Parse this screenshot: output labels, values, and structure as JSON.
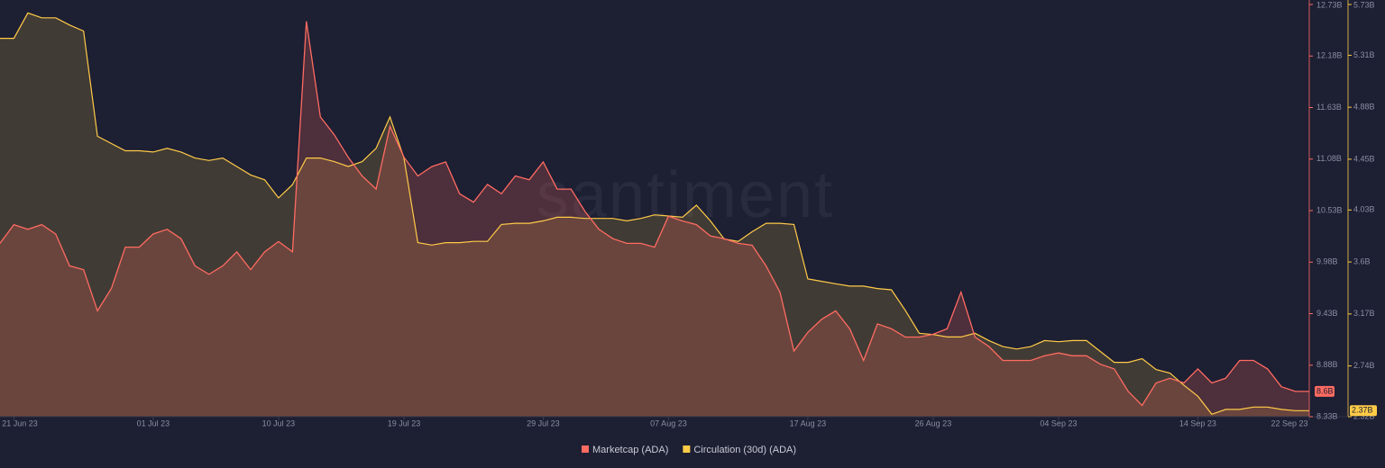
{
  "chart_data": {
    "type": "area",
    "watermark": "santiment",
    "x": [
      "2023-06-20",
      "2023-06-21",
      "2023-06-22",
      "2023-06-23",
      "2023-06-24",
      "2023-06-25",
      "2023-06-26",
      "2023-06-27",
      "2023-06-28",
      "2023-06-29",
      "2023-06-30",
      "2023-07-01",
      "2023-07-02",
      "2023-07-03",
      "2023-07-04",
      "2023-07-05",
      "2023-07-06",
      "2023-07-07",
      "2023-07-08",
      "2023-07-09",
      "2023-07-10",
      "2023-07-11",
      "2023-07-12",
      "2023-07-13",
      "2023-07-14",
      "2023-07-15",
      "2023-07-16",
      "2023-07-17",
      "2023-07-18",
      "2023-07-19",
      "2023-07-20",
      "2023-07-21",
      "2023-07-22",
      "2023-07-23",
      "2023-07-24",
      "2023-07-25",
      "2023-07-26",
      "2023-07-27",
      "2023-07-28",
      "2023-07-29",
      "2023-07-30",
      "2023-07-31",
      "2023-08-01",
      "2023-08-02",
      "2023-08-03",
      "2023-08-04",
      "2023-08-05",
      "2023-08-06",
      "2023-08-07",
      "2023-08-08",
      "2023-08-09",
      "2023-08-10",
      "2023-08-11",
      "2023-08-12",
      "2023-08-13",
      "2023-08-14",
      "2023-08-15",
      "2023-08-16",
      "2023-08-17",
      "2023-08-18",
      "2023-08-19",
      "2023-08-20",
      "2023-08-21",
      "2023-08-22",
      "2023-08-23",
      "2023-08-24",
      "2023-08-25",
      "2023-08-26",
      "2023-08-27",
      "2023-08-28",
      "2023-08-29",
      "2023-08-30",
      "2023-08-31",
      "2023-09-01",
      "2023-09-02",
      "2023-09-03",
      "2023-09-04",
      "2023-09-05",
      "2023-09-06",
      "2023-09-07",
      "2023-09-08",
      "2023-09-09",
      "2023-09-10",
      "2023-09-11",
      "2023-09-12",
      "2023-09-13",
      "2023-09-14",
      "2023-09-15",
      "2023-09-16",
      "2023-09-17",
      "2023-09-18",
      "2023-09-19",
      "2023-09-20",
      "2023-09-21",
      "2023-09-22"
    ],
    "xlim": [
      "2023-06-20",
      "2023-09-22"
    ],
    "xticks": [
      {
        "value": "2023-06-21",
        "label": "21 Jun 23"
      },
      {
        "value": "2023-07-01",
        "label": "01 Jul 23"
      },
      {
        "value": "2023-07-10",
        "label": "10 Jul 23"
      },
      {
        "value": "2023-07-19",
        "label": "19 Jul 23"
      },
      {
        "value": "2023-07-29",
        "label": "29 Jul 23"
      },
      {
        "value": "2023-08-07",
        "label": "07 Aug 23"
      },
      {
        "value": "2023-08-17",
        "label": "17 Aug 23"
      },
      {
        "value": "2023-08-26",
        "label": "26 Aug 23"
      },
      {
        "value": "2023-09-04",
        "label": "04 Sep 23"
      },
      {
        "value": "2023-09-14",
        "label": "14 Sep 23"
      },
      {
        "value": "2023-09-22",
        "label": "22 Sep 23"
      }
    ],
    "ylim": [
      8.33,
      12.73
    ],
    "yticks": [
      {
        "value": 12.73,
        "label": "12.73B"
      },
      {
        "value": 12.18,
        "label": "12.18B"
      },
      {
        "value": 11.63,
        "label": "11.63B"
      },
      {
        "value": 11.08,
        "label": "11.08B"
      },
      {
        "value": 10.53,
        "label": "10.53B"
      },
      {
        "value": 9.98,
        "label": "9.98B"
      },
      {
        "value": 9.43,
        "label": "9.43B"
      },
      {
        "value": 8.88,
        "label": "8.88B"
      },
      {
        "value": 8.33,
        "label": "8.33B"
      }
    ],
    "y2lim": [
      2.32,
      5.73
    ],
    "y2ticks": [
      {
        "value": 5.73,
        "label": "5.73B"
      },
      {
        "value": 5.31,
        "label": "5.31B"
      },
      {
        "value": 4.88,
        "label": "4.88B"
      },
      {
        "value": 4.45,
        "label": "4.45B"
      },
      {
        "value": 4.03,
        "label": "4.03B"
      },
      {
        "value": 3.6,
        "label": "3.6B"
      },
      {
        "value": 3.17,
        "label": "3.17B"
      },
      {
        "value": 2.74,
        "label": "2.74B"
      },
      {
        "value": 2.32,
        "label": "2.32B"
      }
    ],
    "series": [
      {
        "name": "Circulation (30d) (ADA)",
        "color": "#ffcb47",
        "axis": "y2",
        "last_value_label": "2.37B",
        "values": [
          5.45,
          5.45,
          5.66,
          5.62,
          5.62,
          5.56,
          5.51,
          4.64,
          4.58,
          4.52,
          4.52,
          4.51,
          4.54,
          4.51,
          4.46,
          4.44,
          4.46,
          4.39,
          4.32,
          4.28,
          4.13,
          4.24,
          4.46,
          4.46,
          4.43,
          4.39,
          4.43,
          4.54,
          4.8,
          4.46,
          3.76,
          3.74,
          3.76,
          3.76,
          3.77,
          3.77,
          3.91,
          3.92,
          3.92,
          3.94,
          3.97,
          3.97,
          3.96,
          3.96,
          3.96,
          3.94,
          3.96,
          3.99,
          3.98,
          3.97,
          4.07,
          3.94,
          3.79,
          3.77,
          3.85,
          3.92,
          3.92,
          3.91,
          3.46,
          3.44,
          3.42,
          3.4,
          3.4,
          3.38,
          3.37,
          3.2,
          3.01,
          3.0,
          2.98,
          2.98,
          3.01,
          2.95,
          2.9,
          2.88,
          2.9,
          2.95,
          2.94,
          2.95,
          2.95,
          2.86,
          2.77,
          2.77,
          2.8,
          2.71,
          2.68,
          2.58,
          2.49,
          2.34,
          2.38,
          2.38,
          2.4,
          2.4,
          2.38,
          2.37,
          2.37
        ]
      },
      {
        "name": "Marketcap (ADA)",
        "color": "#ff6b61",
        "last_value_label": "8.6B",
        "values": [
          10.18,
          10.38,
          10.33,
          10.38,
          10.28,
          9.94,
          9.9,
          9.46,
          9.7,
          10.14,
          10.14,
          10.28,
          10.33,
          10.23,
          9.94,
          9.85,
          9.94,
          10.09,
          9.9,
          10.09,
          10.2,
          10.09,
          12.55,
          11.53,
          11.34,
          11.1,
          10.9,
          10.76,
          11.43,
          11.1,
          10.9,
          11.0,
          11.05,
          10.71,
          10.62,
          10.81,
          10.71,
          10.9,
          10.86,
          11.05,
          10.76,
          10.76,
          10.52,
          10.33,
          10.23,
          10.18,
          10.18,
          10.14,
          10.47,
          10.42,
          10.38,
          10.26,
          10.23,
          10.18,
          10.16,
          9.94,
          9.66,
          9.03,
          9.23,
          9.37,
          9.46,
          9.27,
          8.93,
          9.32,
          9.27,
          9.18,
          9.18,
          9.21,
          9.27,
          9.66,
          9.18,
          9.08,
          8.93,
          8.93,
          8.93,
          8.98,
          9.01,
          8.98,
          8.98,
          8.89,
          8.84,
          8.6,
          8.45,
          8.69,
          8.74,
          8.69,
          8.84,
          8.69,
          8.74,
          8.93,
          8.93,
          8.84,
          8.65,
          8.6,
          8.6
        ]
      }
    ]
  }
}
